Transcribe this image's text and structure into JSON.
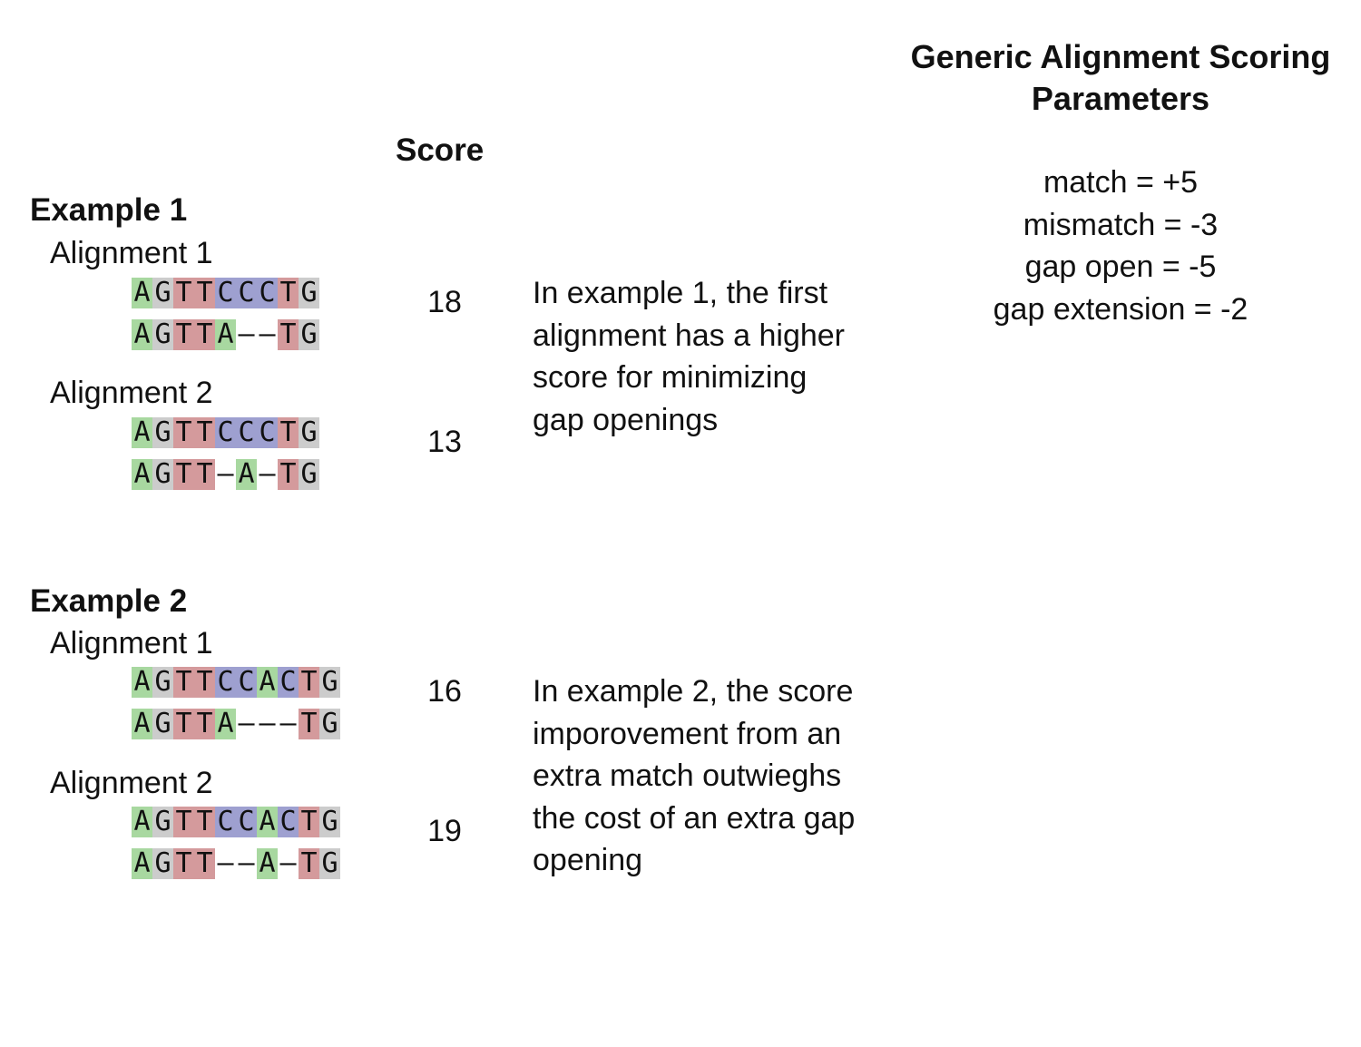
{
  "score_header": "Score",
  "params": {
    "title_line1": "Generic Alignment Scoring",
    "title_line2": "Parameters",
    "lines": [
      "match = +5",
      "mismatch = -3",
      "gap open = -5",
      "gap extension = -2"
    ]
  },
  "colors": {
    "A": "#a8d8a0",
    "G": "#cccccc",
    "T": "#d49a9c",
    "C": "#9ea0d0",
    "-": "transparent"
  },
  "examples": [
    {
      "title": "Example 1",
      "description": [
        "In example 1, the first",
        "alignment has a higher",
        "score for minimizing",
        "gap openings"
      ],
      "alignments": [
        {
          "label": "Alignment 1",
          "score": "18",
          "top": "AGTTCCCTG",
          "bottom": "AGTTA--TG"
        },
        {
          "label": "Alignment 2",
          "score": "13",
          "top": "AGTTCCCTG",
          "bottom": "AGTT-A-TG"
        }
      ]
    },
    {
      "title": "Example 2",
      "description": [
        "In example 2, the score",
        "imporovement from an",
        "extra match outwieghs",
        "the cost of an extra gap",
        "opening"
      ],
      "alignments": [
        {
          "label": "Alignment 1",
          "score": "16",
          "top": "AGTTCCACTG",
          "bottom": "AGTTA---TG"
        },
        {
          "label": "Alignment 2",
          "score": "19",
          "top": "AGTTCCACTG",
          "bottom": "AGTT--A-TG"
        }
      ]
    }
  ]
}
